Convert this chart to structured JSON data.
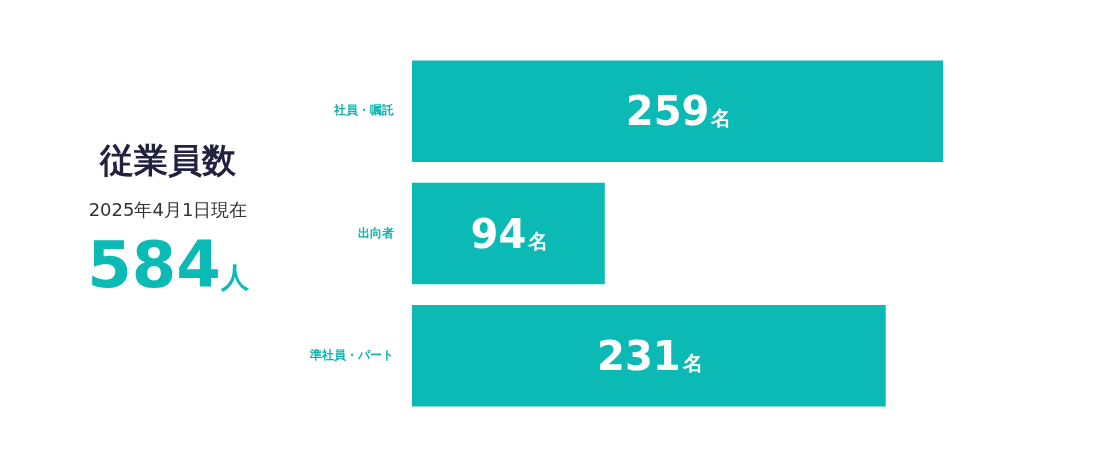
{
  "chart_data": {
    "type": "bar",
    "orientation": "horizontal",
    "title": "従業員数",
    "subtitle": "2025年4月1日現在",
    "annotations": [
      "584人"
    ],
    "categories": [
      "社員・嘱託",
      "出向者",
      "準社員・パート"
    ],
    "values": [
      259,
      94,
      231
    ],
    "value_labels": [
      "259名",
      "94名",
      "231名"
    ],
    "color": "#0bbab5",
    "legend": false,
    "tick_labels": "y"
  }
}
